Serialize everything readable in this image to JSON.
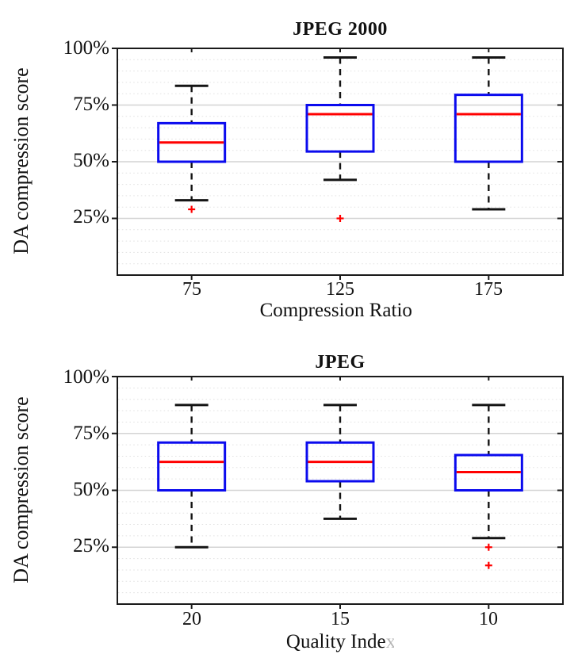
{
  "figure": {
    "background": "#ffffff"
  },
  "style": {
    "box_edge": "#0b0bee",
    "median": "#ff0000",
    "whisker": "#141414",
    "outlier": "#ff0000",
    "grid_major": "#d4d4d4",
    "grid_minor": "#e3e3e3",
    "axis": "#1a1a1a",
    "text": "#141414"
  },
  "chart_data": [
    {
      "type": "boxplot",
      "title": "JPEG 2000",
      "xlabel": "Compression Ratio",
      "xlabel_faded_suffix": "",
      "ylabel": "DA compression score",
      "ylim": [
        0,
        100
      ],
      "y_unit": "%",
      "grid": "horizontal major solid + minor dotted",
      "minor_grid_step": 5,
      "y_ticks": [
        {
          "value": 100,
          "label": "100%"
        },
        {
          "value": 75,
          "label": "75%"
        },
        {
          "value": 50,
          "label": "50%"
        },
        {
          "value": 25,
          "label": "25%"
        }
      ],
      "categories": [
        "75",
        "125",
        "175"
      ],
      "series": [
        {
          "category": "75",
          "whisker_low": 33,
          "q1": 50,
          "median": 58.5,
          "q3": 67,
          "whisker_high": 83.5,
          "outliers": [
            29
          ]
        },
        {
          "category": "125",
          "whisker_low": 42,
          "q1": 54.5,
          "median": 71,
          "q3": 75,
          "whisker_high": 96,
          "outliers": [
            25
          ]
        },
        {
          "category": "175",
          "whisker_low": 29,
          "q1": 50,
          "median": 71,
          "q3": 79.5,
          "whisker_high": 96,
          "outliers": []
        }
      ]
    },
    {
      "type": "boxplot",
      "title": "JPEG",
      "xlabel": "Quality Inde",
      "xlabel_faded_suffix": "x",
      "ylabel": "DA compression score",
      "ylim": [
        0,
        100
      ],
      "y_unit": "%",
      "grid": "horizontal major solid + minor dotted",
      "minor_grid_step": 5,
      "y_ticks": [
        {
          "value": 100,
          "label": "100%"
        },
        {
          "value": 75,
          "label": "75%"
        },
        {
          "value": 50,
          "label": "50%"
        },
        {
          "value": 25,
          "label": "25%"
        }
      ],
      "categories": [
        "20",
        "15",
        "10"
      ],
      "series": [
        {
          "category": "20",
          "whisker_low": 25,
          "q1": 50,
          "median": 62.5,
          "q3": 71,
          "whisker_high": 87.5,
          "outliers": []
        },
        {
          "category": "15",
          "whisker_low": 37.5,
          "q1": 54,
          "median": 62.5,
          "q3": 71,
          "whisker_high": 87.5,
          "outliers": []
        },
        {
          "category": "10",
          "whisker_low": 29,
          "q1": 50,
          "median": 58,
          "q3": 65.5,
          "whisker_high": 87.5,
          "outliers": [
            25,
            17
          ]
        }
      ]
    }
  ]
}
